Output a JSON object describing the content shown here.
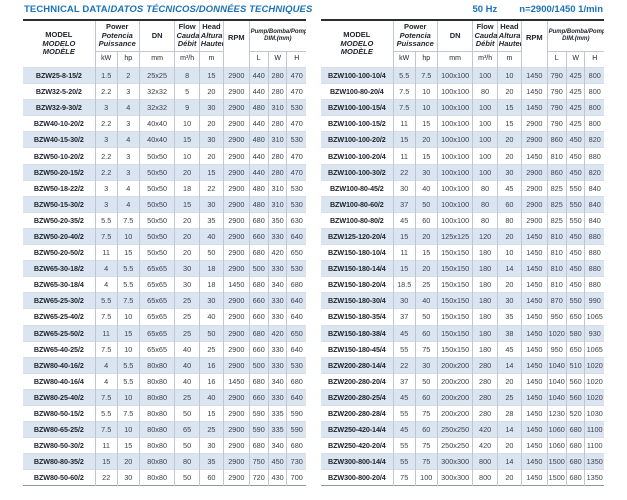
{
  "title": {
    "part1": "TECHNICAL DATA/",
    "part2": "DATOS TÉCNICOS/DONNÉES TECHNIQUES"
  },
  "frequency_note": {
    "hz": "50 Hz",
    "speed": "n=2900/1450 1/min"
  },
  "columns": {
    "model": {
      "en": "MODEL",
      "es": "MODELO",
      "fr": "MODÈLE"
    },
    "power": {
      "en": "Power",
      "es": "Potencia",
      "fr": "Puissance",
      "unit_kw": "kW",
      "unit_hp": "hp"
    },
    "dn": {
      "label": "DN",
      "unit": "mm"
    },
    "flow": {
      "en": "Flow",
      "es": "Caudal",
      "fr": "Débit",
      "unit": "m³/h"
    },
    "head": {
      "en": "Head",
      "es": "Altura",
      "fr": "Hauteur",
      "unit": "m"
    },
    "rpm": {
      "label": "RPM"
    },
    "dim": {
      "line1": "Pump/Bomba/Pompe",
      "line2": "DIM.(mm)",
      "unit_l": "L",
      "unit_w": "W",
      "unit_h": "H"
    }
  },
  "tables": [
    {
      "rows": [
        [
          "BZW25-8-15/2",
          "1.5",
          "2",
          "25x25",
          "8",
          "15",
          "2900",
          "440",
          "280",
          "470"
        ],
        [
          "BZW32-5-20/2",
          "2.2",
          "3",
          "32x32",
          "5",
          "20",
          "2900",
          "440",
          "280",
          "470"
        ],
        [
          "BZW32-9-30/2",
          "3",
          "4",
          "32x32",
          "9",
          "30",
          "2900",
          "480",
          "310",
          "530"
        ],
        [
          "BZW40-10-20/2",
          "2.2",
          "3",
          "40x40",
          "10",
          "20",
          "2900",
          "440",
          "280",
          "470"
        ],
        [
          "BZW40-15-30/2",
          "3",
          "4",
          "40x40",
          "15",
          "30",
          "2900",
          "480",
          "310",
          "530"
        ],
        [
          "BZW50-10-20/2",
          "2.2",
          "3",
          "50x50",
          "10",
          "20",
          "2900",
          "440",
          "280",
          "470"
        ],
        [
          "BZW50-20-15/2",
          "2.2",
          "3",
          "50x50",
          "20",
          "15",
          "2900",
          "440",
          "280",
          "470"
        ],
        [
          "BZW50-18-22/2",
          "3",
          "4",
          "50x50",
          "18",
          "22",
          "2900",
          "480",
          "310",
          "530"
        ],
        [
          "BZW50-15-30/2",
          "3",
          "4",
          "50x50",
          "15",
          "30",
          "2900",
          "480",
          "310",
          "530"
        ],
        [
          "BZW50-20-35/2",
          "5.5",
          "7.5",
          "50x50",
          "20",
          "35",
          "2900",
          "680",
          "350",
          "630"
        ],
        [
          "BZW50-20-40/2",
          "7.5",
          "10",
          "50x50",
          "20",
          "40",
          "2900",
          "660",
          "330",
          "640"
        ],
        [
          "BZW50-20-50/2",
          "11",
          "15",
          "50x50",
          "20",
          "50",
          "2900",
          "680",
          "420",
          "650"
        ],
        [
          "BZW65-30-18/2",
          "4",
          "5.5",
          "65x65",
          "30",
          "18",
          "2900",
          "500",
          "330",
          "530"
        ],
        [
          "BZW65-30-18/4",
          "4",
          "5.5",
          "65x65",
          "30",
          "18",
          "1450",
          "680",
          "340",
          "680"
        ],
        [
          "BZW65-25-30/2",
          "5.5",
          "7.5",
          "65x65",
          "25",
          "30",
          "2900",
          "660",
          "330",
          "640"
        ],
        [
          "BZW65-25-40/2",
          "7.5",
          "10",
          "65x65",
          "25",
          "40",
          "2900",
          "660",
          "330",
          "640"
        ],
        [
          "BZW65-25-50/2",
          "11",
          "15",
          "65x65",
          "25",
          "50",
          "2900",
          "680",
          "420",
          "650"
        ],
        [
          "BZW65-40-25/2",
          "7.5",
          "10",
          "65x65",
          "40",
          "25",
          "2900",
          "660",
          "330",
          "640"
        ],
        [
          "BZW80-40-16/2",
          "4",
          "5.5",
          "80x80",
          "40",
          "16",
          "2900",
          "500",
          "330",
          "530"
        ],
        [
          "BZW80-40-16/4",
          "4",
          "5.5",
          "80x80",
          "40",
          "16",
          "1450",
          "680",
          "340",
          "680"
        ],
        [
          "BZW80-25-40/2",
          "7.5",
          "10",
          "80x80",
          "25",
          "40",
          "2900",
          "660",
          "330",
          "640"
        ],
        [
          "BZW80-50-15/2",
          "5.5",
          "7.5",
          "80x80",
          "50",
          "15",
          "2900",
          "590",
          "335",
          "590"
        ],
        [
          "BZW80-65-25/2",
          "7.5",
          "10",
          "80x80",
          "65",
          "25",
          "2900",
          "590",
          "335",
          "590"
        ],
        [
          "BZW80-50-30/2",
          "11",
          "15",
          "80x80",
          "50",
          "30",
          "2900",
          "680",
          "340",
          "680"
        ],
        [
          "BZW80-80-35/2",
          "15",
          "20",
          "80x80",
          "80",
          "35",
          "2900",
          "750",
          "450",
          "730"
        ],
        [
          "BZW80-50-60/2",
          "22",
          "30",
          "80x80",
          "50",
          "60",
          "2900",
          "720",
          "430",
          "700"
        ]
      ]
    },
    {
      "rows": [
        [
          "BZW100-100-10/4",
          "5.5",
          "7.5",
          "100x100",
          "100",
          "10",
          "1450",
          "790",
          "425",
          "800"
        ],
        [
          "BZW100-80-20/4",
          "7.5",
          "10",
          "100x100",
          "80",
          "20",
          "1450",
          "790",
          "425",
          "800"
        ],
        [
          "BZW100-100-15/4",
          "7.5",
          "10",
          "100x100",
          "100",
          "15",
          "1450",
          "790",
          "425",
          "800"
        ],
        [
          "BZW100-100-15/2",
          "11",
          "15",
          "100x100",
          "100",
          "15",
          "2900",
          "790",
          "425",
          "800"
        ],
        [
          "BZW100-100-20/2",
          "15",
          "20",
          "100x100",
          "100",
          "20",
          "2900",
          "860",
          "450",
          "820"
        ],
        [
          "BZW100-100-20/4",
          "11",
          "15",
          "100x100",
          "100",
          "20",
          "1450",
          "810",
          "450",
          "880"
        ],
        [
          "BZW100-100-30/2",
          "22",
          "30",
          "100x100",
          "100",
          "30",
          "2900",
          "860",
          "450",
          "820"
        ],
        [
          "BZW100-80-45/2",
          "30",
          "40",
          "100x100",
          "80",
          "45",
          "2900",
          "825",
          "550",
          "840"
        ],
        [
          "BZW100-80-60/2",
          "37",
          "50",
          "100x100",
          "80",
          "60",
          "2900",
          "825",
          "550",
          "840"
        ],
        [
          "BZW100-80-80/2",
          "45",
          "60",
          "100x100",
          "80",
          "80",
          "2900",
          "825",
          "550",
          "840"
        ],
        [
          "BZW125-120-20/4",
          "15",
          "20",
          "125x125",
          "120",
          "20",
          "1450",
          "810",
          "450",
          "880"
        ],
        [
          "BZW150-180-10/4",
          "11",
          "15",
          "150x150",
          "180",
          "10",
          "1450",
          "810",
          "450",
          "880"
        ],
        [
          "BZW150-180-14/4",
          "15",
          "20",
          "150x150",
          "180",
          "14",
          "1450",
          "810",
          "450",
          "880"
        ],
        [
          "BZW150-180-20/4",
          "18.5",
          "25",
          "150x150",
          "180",
          "20",
          "1450",
          "810",
          "450",
          "880"
        ],
        [
          "BZW150-180-30/4",
          "30",
          "40",
          "150x150",
          "180",
          "30",
          "1450",
          "870",
          "550",
          "990"
        ],
        [
          "BZW150-180-35/4",
          "37",
          "50",
          "150x150",
          "180",
          "35",
          "1450",
          "950",
          "650",
          "1065"
        ],
        [
          "BZW150-180-38/4",
          "45",
          "60",
          "150x150",
          "180",
          "38",
          "1450",
          "1020",
          "580",
          "930"
        ],
        [
          "BZW150-180-45/4",
          "55",
          "75",
          "150x150",
          "180",
          "45",
          "1450",
          "950",
          "650",
          "1065"
        ],
        [
          "BZW200-280-14/4",
          "22",
          "30",
          "200x200",
          "280",
          "14",
          "1450",
          "1040",
          "510",
          "1020"
        ],
        [
          "BZW200-280-20/4",
          "37",
          "50",
          "200x200",
          "280",
          "20",
          "1450",
          "1040",
          "560",
          "1020"
        ],
        [
          "BZW200-280-25/4",
          "45",
          "60",
          "200x200",
          "280",
          "25",
          "1450",
          "1040",
          "560",
          "1020"
        ],
        [
          "BZW200-280-28/4",
          "55",
          "75",
          "200x200",
          "280",
          "28",
          "1450",
          "1230",
          "520",
          "1030"
        ],
        [
          "BZW250-420-14/4",
          "45",
          "60",
          "250x250",
          "420",
          "14",
          "1450",
          "1060",
          "680",
          "1100"
        ],
        [
          "BZW250-420-20/4",
          "55",
          "75",
          "250x250",
          "420",
          "20",
          "1450",
          "1060",
          "680",
          "1100"
        ],
        [
          "BZW300-800-14/4",
          "55",
          "75",
          "300x300",
          "800",
          "14",
          "1450",
          "1500",
          "680",
          "1350"
        ],
        [
          "BZW300-800-20/4",
          "75",
          "100",
          "300x300",
          "800",
          "20",
          "1450",
          "1500",
          "680",
          "1350"
        ]
      ]
    }
  ]
}
